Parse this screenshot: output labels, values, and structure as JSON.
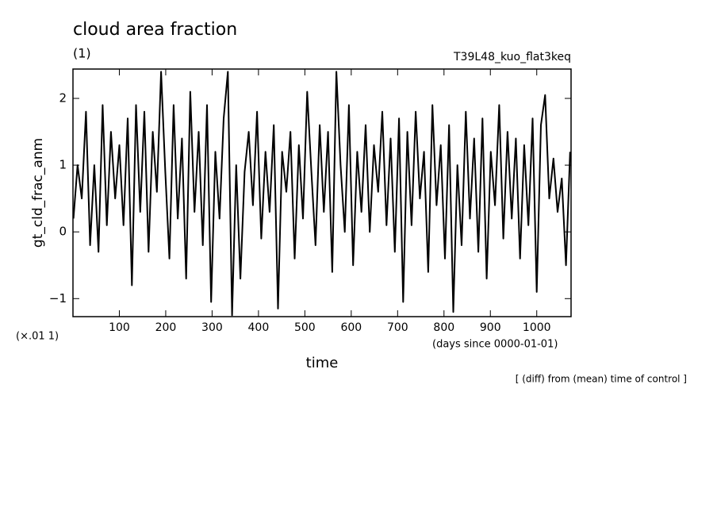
{
  "chart_data": {
    "type": "line",
    "title": "cloud area fraction",
    "subtitle": "(1)",
    "annotation": "T39L48_kuo_flat3keq",
    "ylabel": "gt_cld_frac_anm",
    "yunit": "(×.01 1)",
    "xunit": "(days since 0000-01-01)",
    "xlabel": "time",
    "footnote": "[ (diff) from (mean) time of control ]",
    "xlim": [
      0,
      1074
    ],
    "ylim": [
      -1.27,
      2.44
    ],
    "xticks": [
      100,
      200,
      300,
      400,
      500,
      600,
      700,
      800,
      900,
      1000
    ],
    "yticks": [
      2,
      1,
      0,
      {
        "value": -1,
        "label": "−1"
      }
    ],
    "color": "#000000",
    "x": [
      1,
      10,
      19,
      28,
      37,
      46,
      55,
      64,
      73,
      82,
      91,
      100,
      109,
      118,
      127,
      136,
      145,
      154,
      163,
      172,
      181,
      190,
      199,
      208,
      217,
      226,
      235,
      244,
      253,
      262,
      271,
      280,
      289,
      298,
      307,
      316,
      325,
      334,
      343,
      352,
      361,
      370,
      379,
      388,
      397,
      406,
      415,
      424,
      433,
      442,
      451,
      460,
      469,
      478,
      487,
      496,
      505,
      514,
      523,
      532,
      541,
      550,
      559,
      568,
      577,
      586,
      595,
      604,
      613,
      622,
      631,
      640,
      649,
      658,
      667,
      676,
      685,
      694,
      703,
      712,
      721,
      730,
      739,
      748,
      757,
      766,
      775,
      784,
      793,
      802,
      811,
      820,
      829,
      838,
      847,
      856,
      865,
      874,
      883,
      892,
      901,
      910,
      919,
      928,
      937,
      946,
      955,
      964,
      973,
      982,
      991,
      1000,
      1009,
      1018,
      1027,
      1036,
      1045,
      1054,
      1063,
      1072
    ],
    "values": [
      0.2,
      1.0,
      0.5,
      1.8,
      -0.2,
      1.0,
      -0.3,
      1.9,
      0.1,
      1.5,
      0.5,
      1.3,
      0.1,
      1.7,
      -0.8,
      1.9,
      0.3,
      1.8,
      -0.3,
      1.5,
      0.6,
      2.4,
      0.9,
      -0.4,
      1.9,
      0.2,
      1.4,
      -0.7,
      2.1,
      0.3,
      1.5,
      -0.2,
      1.9,
      -1.05,
      1.2,
      0.2,
      1.7,
      2.4,
      -1.25,
      1.0,
      -0.7,
      0.9,
      1.5,
      0.4,
      1.8,
      -0.1,
      1.2,
      0.3,
      1.6,
      -1.15,
      1.2,
      0.6,
      1.5,
      -0.4,
      1.3,
      0.2,
      2.1,
      0.9,
      -0.2,
      1.6,
      0.3,
      1.5,
      -0.6,
      2.4,
      1.0,
      0.0,
      1.9,
      -0.5,
      1.2,
      0.3,
      1.6,
      0.0,
      1.3,
      0.6,
      1.8,
      0.1,
      1.4,
      -0.3,
      1.7,
      -1.05,
      1.5,
      0.1,
      1.8,
      0.5,
      1.2,
      -0.6,
      1.9,
      0.4,
      1.3,
      -0.4,
      1.6,
      -1.2,
      1.0,
      -0.2,
      1.8,
      0.2,
      1.4,
      -0.3,
      1.7,
      -0.7,
      1.2,
      0.4,
      1.9,
      -0.1,
      1.5,
      0.2,
      1.4,
      -0.4,
      1.3,
      0.1,
      1.7,
      -0.9,
      1.6,
      2.05,
      0.5,
      1.1,
      0.3,
      0.8,
      -0.5,
      1.2
    ]
  }
}
